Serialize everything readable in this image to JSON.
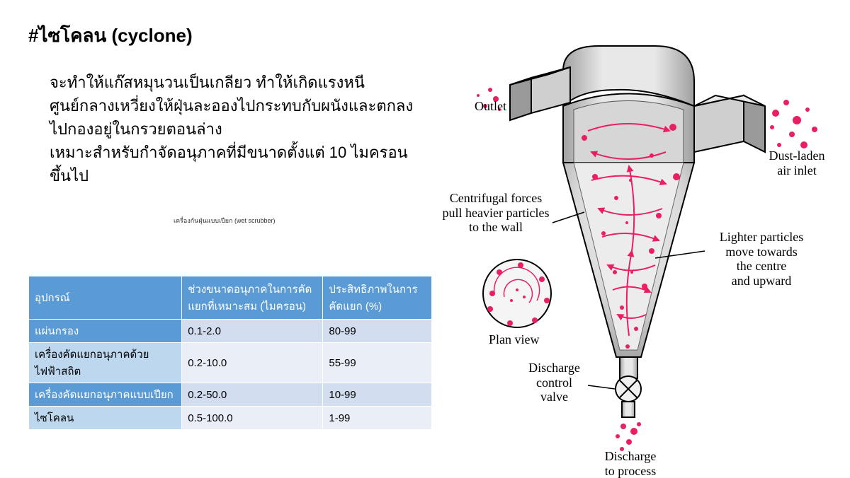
{
  "title": "#ไซโคลน (cyclone)",
  "description": "จะทำให้แก๊สหมุนวนเป็นเกลียว ทำให้เกิดแรงหนีศูนย์กลางเหวี่ยงให้ฝุ่นละอองไปกระทบกับผนังและตกลงไปกองอยู่ในกรวยตอนล่าง\nเหมาะสำหรับกำจัดอนุภาคที่มีขนาดตั้งแต่ 10 ไมครอนขึ้นไป",
  "subcaption": "เครื่องกันฝุ่นแบบเปียก (wet scrubber)",
  "table": {
    "headers": [
      "อุปกรณ์",
      "ช่วงขนาดอนุภาคในการคัดแยกที่เหมาะสม (ไมครอน)",
      "ประสิทธิภาพในการคัดแยก (%)"
    ],
    "rows": [
      [
        "แผ่นกรอง",
        "0.1-2.0",
        "80-99"
      ],
      [
        "เครื่องคัดแยกอนุภาคด้วยไฟฟ้าสถิต",
        "0.2-10.0",
        "55-99"
      ],
      [
        "เครื่องคัดแยกอนุภาคแบบเปียก",
        "0.2-50.0",
        "10-99"
      ],
      [
        "ไซโคลน",
        "0.5-100.0",
        "1-99"
      ]
    ]
  },
  "diagram": {
    "labels": {
      "outlet": "Outlet",
      "dust_inlet": "Dust-laden\nair inlet",
      "centrifugal": "Centrifugal forces\npull heavier particles\nto the wall",
      "lighter": "Lighter particles\nmove towards\nthe centre\nand upward",
      "planview": "Plan view",
      "valve": "Discharge\ncontrol\nvalve",
      "discharge": "Discharge\nto process"
    },
    "colors": {
      "particle": "#e91e63",
      "body_light": "#e8e8e8",
      "body_mid": "#c8c8c8",
      "body_dark": "#888888",
      "outline": "#000000"
    }
  }
}
